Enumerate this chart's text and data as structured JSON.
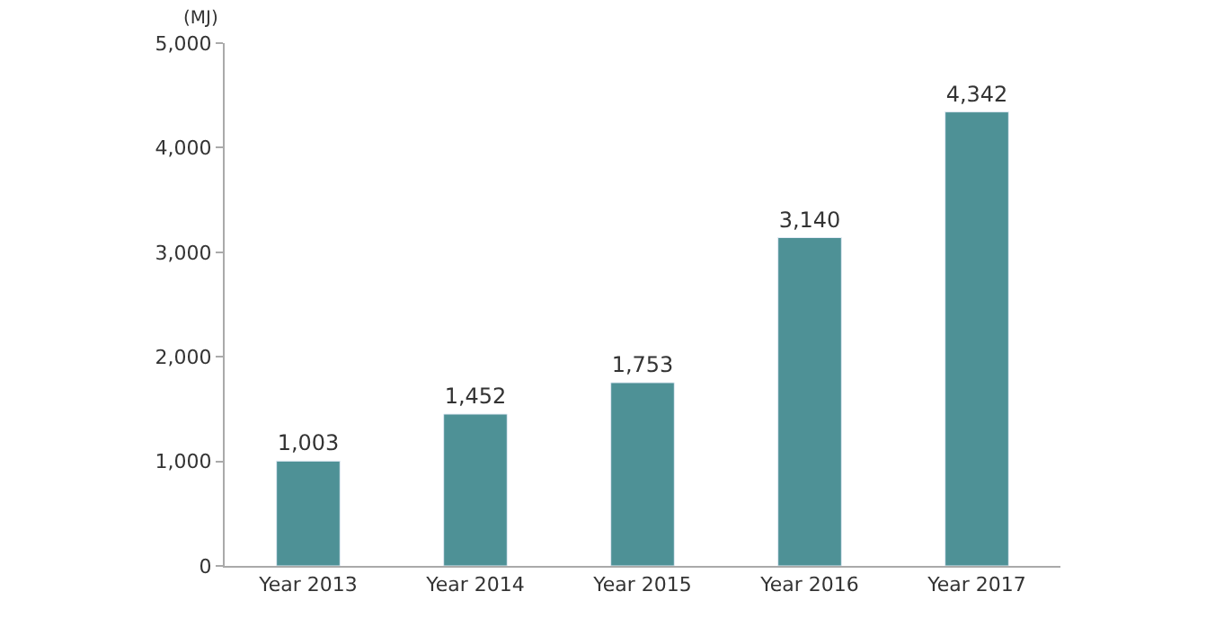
{
  "chart_data": {
    "type": "bar",
    "ylabel": "(MJ)",
    "categories": [
      "Year 2013",
      "Year 2014",
      "Year 2015",
      "Year 2016",
      "Year 2017"
    ],
    "values": [
      1003,
      1452,
      1753,
      3140,
      4342
    ],
    "value_labels": [
      "1,003",
      "1,452",
      "1,753",
      "3,140",
      "4,342"
    ],
    "color": "#4e9196",
    "ylim": [
      0,
      5000
    ],
    "yticks": [
      {
        "value": 0,
        "label": "0"
      },
      {
        "value": 1000,
        "label": "1,000"
      },
      {
        "value": 2000,
        "label": "2,000"
      },
      {
        "value": 3000,
        "label": "3,000"
      },
      {
        "value": 4000,
        "label": "4,000"
      },
      {
        "value": 5000,
        "label": "5,000"
      }
    ]
  }
}
